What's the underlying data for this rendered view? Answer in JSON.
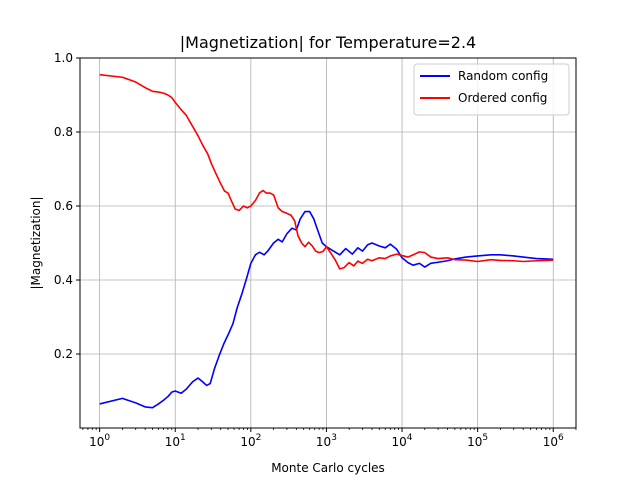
{
  "chart_data": {
    "type": "line",
    "title": "|Magnetization| for Temperature=2.4",
    "xlabel": "Monte Carlo cycles",
    "ylabel": "|Magnetization|",
    "xscale": "log",
    "xlim": [
      0.55,
      2000000
    ],
    "ylim": [
      0.0,
      1.0
    ],
    "xticks": [
      {
        "base": "10",
        "exp": "0",
        "value": 1
      },
      {
        "base": "10",
        "exp": "1",
        "value": 10
      },
      {
        "base": "10",
        "exp": "2",
        "value": 100
      },
      {
        "base": "10",
        "exp": "3",
        "value": 1000
      },
      {
        "base": "10",
        "exp": "4",
        "value": 10000
      },
      {
        "base": "10",
        "exp": "5",
        "value": 100000
      },
      {
        "base": "10",
        "exp": "6",
        "value": 1000000
      }
    ],
    "yticks": [
      {
        "label": "0.2",
        "value": 0.2
      },
      {
        "label": "0.4",
        "value": 0.4
      },
      {
        "label": "0.6",
        "value": 0.6
      },
      {
        "label": "0.8",
        "value": 0.8
      },
      {
        "label": "1.0",
        "value": 1.0
      }
    ],
    "grid": true,
    "legend_position": "top-right",
    "series": [
      {
        "name": "Random config",
        "color": "#0000ff",
        "points": [
          [
            1,
            0.065
          ],
          [
            2,
            0.08
          ],
          [
            3,
            0.068
          ],
          [
            4,
            0.057
          ],
          [
            5,
            0.055
          ],
          [
            6,
            0.065
          ],
          [
            7,
            0.075
          ],
          [
            8,
            0.085
          ],
          [
            9,
            0.097
          ],
          [
            10,
            0.1
          ],
          [
            12,
            0.094
          ],
          [
            14,
            0.105
          ],
          [
            17,
            0.125
          ],
          [
            20,
            0.135
          ],
          [
            23,
            0.125
          ],
          [
            26,
            0.115
          ],
          [
            29,
            0.12
          ],
          [
            33,
            0.16
          ],
          [
            38,
            0.195
          ],
          [
            44,
            0.228
          ],
          [
            50,
            0.252
          ],
          [
            58,
            0.282
          ],
          [
            66,
            0.325
          ],
          [
            76,
            0.362
          ],
          [
            88,
            0.405
          ],
          [
            100,
            0.445
          ],
          [
            115,
            0.468
          ],
          [
            130,
            0.475
          ],
          [
            150,
            0.468
          ],
          [
            170,
            0.48
          ],
          [
            200,
            0.5
          ],
          [
            230,
            0.51
          ],
          [
            260,
            0.503
          ],
          [
            300,
            0.525
          ],
          [
            350,
            0.54
          ],
          [
            400,
            0.535
          ],
          [
            450,
            0.565
          ],
          [
            520,
            0.585
          ],
          [
            600,
            0.585
          ],
          [
            680,
            0.565
          ],
          [
            780,
            0.53
          ],
          [
            880,
            0.5
          ],
          [
            1000,
            0.49
          ],
          [
            1200,
            0.48
          ],
          [
            1500,
            0.468
          ],
          [
            1800,
            0.485
          ],
          [
            2200,
            0.47
          ],
          [
            2600,
            0.487
          ],
          [
            3000,
            0.478
          ],
          [
            3500,
            0.495
          ],
          [
            4000,
            0.5
          ],
          [
            5000,
            0.492
          ],
          [
            6000,
            0.487
          ],
          [
            7000,
            0.497
          ],
          [
            8500,
            0.483
          ],
          [
            10000,
            0.46
          ],
          [
            12000,
            0.447
          ],
          [
            14000,
            0.44
          ],
          [
            17000,
            0.445
          ],
          [
            20000,
            0.435
          ],
          [
            24000,
            0.445
          ],
          [
            30000,
            0.448
          ],
          [
            40000,
            0.452
          ],
          [
            50000,
            0.457
          ],
          [
            70000,
            0.462
          ],
          [
            100000,
            0.465
          ],
          [
            150000,
            0.468
          ],
          [
            200000,
            0.468
          ],
          [
            300000,
            0.465
          ],
          [
            400000,
            0.462
          ],
          [
            600000,
            0.458
          ],
          [
            800000,
            0.457
          ],
          [
            1000000,
            0.456
          ]
        ]
      },
      {
        "name": "Ordered config",
        "color": "#ff0000",
        "points": [
          [
            1,
            0.955
          ],
          [
            2,
            0.948
          ],
          [
            3,
            0.935
          ],
          [
            4,
            0.92
          ],
          [
            5,
            0.91
          ],
          [
            6,
            0.908
          ],
          [
            7,
            0.905
          ],
          [
            8,
            0.9
          ],
          [
            9,
            0.893
          ],
          [
            10,
            0.88
          ],
          [
            12,
            0.86
          ],
          [
            14,
            0.845
          ],
          [
            17,
            0.815
          ],
          [
            20,
            0.79
          ],
          [
            23,
            0.765
          ],
          [
            27,
            0.74
          ],
          [
            30,
            0.715
          ],
          [
            35,
            0.685
          ],
          [
            40,
            0.66
          ],
          [
            45,
            0.64
          ],
          [
            50,
            0.635
          ],
          [
            55,
            0.615
          ],
          [
            62,
            0.592
          ],
          [
            70,
            0.588
          ],
          [
            80,
            0.6
          ],
          [
            90,
            0.595
          ],
          [
            100,
            0.6
          ],
          [
            115,
            0.615
          ],
          [
            130,
            0.635
          ],
          [
            145,
            0.642
          ],
          [
            160,
            0.635
          ],
          [
            180,
            0.635
          ],
          [
            200,
            0.63
          ],
          [
            230,
            0.595
          ],
          [
            260,
            0.585
          ],
          [
            300,
            0.58
          ],
          [
            340,
            0.575
          ],
          [
            380,
            0.56
          ],
          [
            420,
            0.52
          ],
          [
            470,
            0.5
          ],
          [
            520,
            0.49
          ],
          [
            580,
            0.502
          ],
          [
            650,
            0.492
          ],
          [
            720,
            0.478
          ],
          [
            800,
            0.474
          ],
          [
            900,
            0.477
          ],
          [
            1000,
            0.49
          ],
          [
            1150,
            0.472
          ],
          [
            1300,
            0.455
          ],
          [
            1500,
            0.43
          ],
          [
            1700,
            0.433
          ],
          [
            2000,
            0.447
          ],
          [
            2300,
            0.438
          ],
          [
            2600,
            0.451
          ],
          [
            3000,
            0.445
          ],
          [
            3500,
            0.456
          ],
          [
            4000,
            0.452
          ],
          [
            5000,
            0.46
          ],
          [
            6000,
            0.458
          ],
          [
            7000,
            0.465
          ],
          [
            8500,
            0.47
          ],
          [
            10000,
            0.466
          ],
          [
            12000,
            0.462
          ],
          [
            14000,
            0.468
          ],
          [
            17000,
            0.476
          ],
          [
            20000,
            0.474
          ],
          [
            24000,
            0.462
          ],
          [
            30000,
            0.458
          ],
          [
            40000,
            0.46
          ],
          [
            50000,
            0.455
          ],
          [
            70000,
            0.454
          ],
          [
            100000,
            0.45
          ],
          [
            150000,
            0.455
          ],
          [
            200000,
            0.453
          ],
          [
            300000,
            0.452
          ],
          [
            400000,
            0.45
          ],
          [
            600000,
            0.452
          ],
          [
            800000,
            0.453
          ],
          [
            1000000,
            0.454
          ]
        ]
      }
    ]
  }
}
